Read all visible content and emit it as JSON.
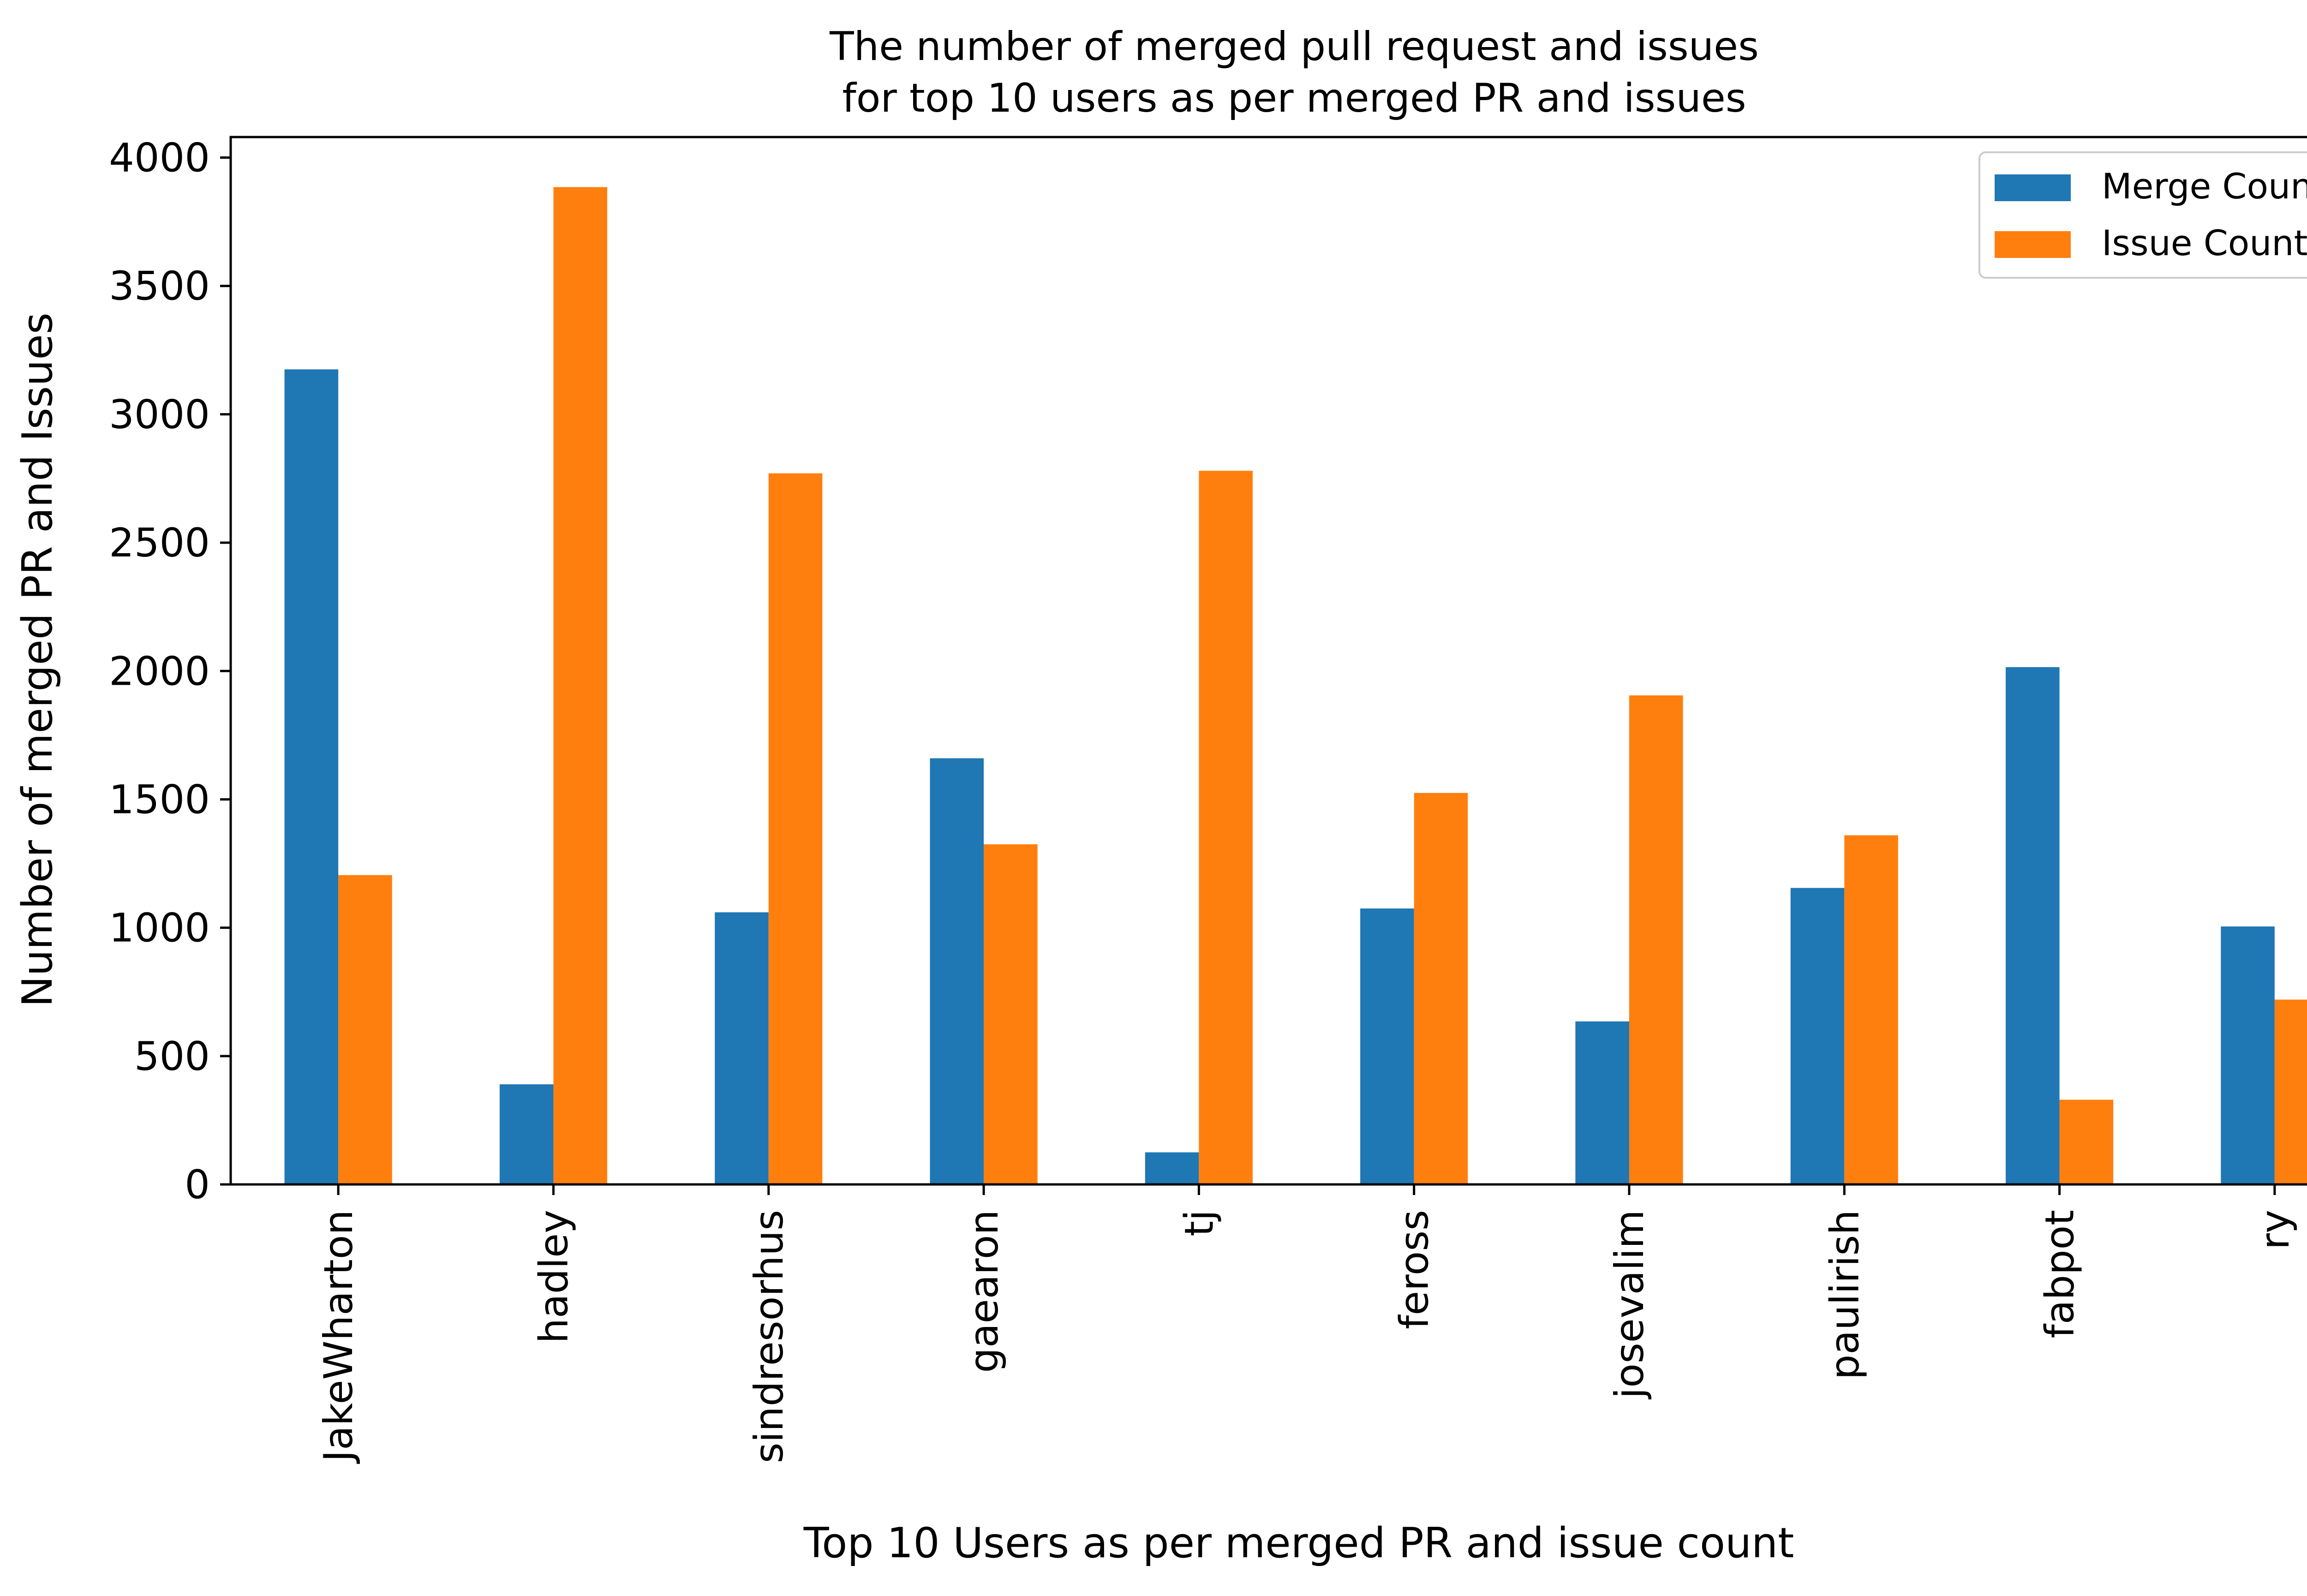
{
  "chart_data": {
    "type": "bar",
    "title_lines": [
      "The number of merged pull request and issues",
      "for top 10 users as per merged PR and issues"
    ],
    "xlabel": "Top 10 Users as per merged PR and issue count",
    "ylabel": "Number of merged PR and Issues",
    "categories": [
      "JakeWharton",
      "hadley",
      "sindresorhus",
      "gaearon",
      "tj",
      "feross",
      "josevalim",
      "paulirish",
      "fabpot",
      "ry"
    ],
    "series": [
      {
        "name": "Merge Count",
        "color": "#1f77b4",
        "values": [
          3175,
          390,
          1060,
          1660,
          125,
          1075,
          635,
          1155,
          2015,
          1005
        ]
      },
      {
        "name": "Issue Count",
        "color": "#ff7f0e",
        "values": [
          1205,
          3885,
          2770,
          1325,
          2780,
          1525,
          1905,
          1360,
          330,
          720
        ]
      }
    ],
    "ylim": [
      0,
      4080
    ],
    "yticks": [
      0,
      500,
      1000,
      1500,
      2000,
      2500,
      3000,
      3500,
      4000
    ],
    "legend_position": "upper right",
    "grid": false
  }
}
